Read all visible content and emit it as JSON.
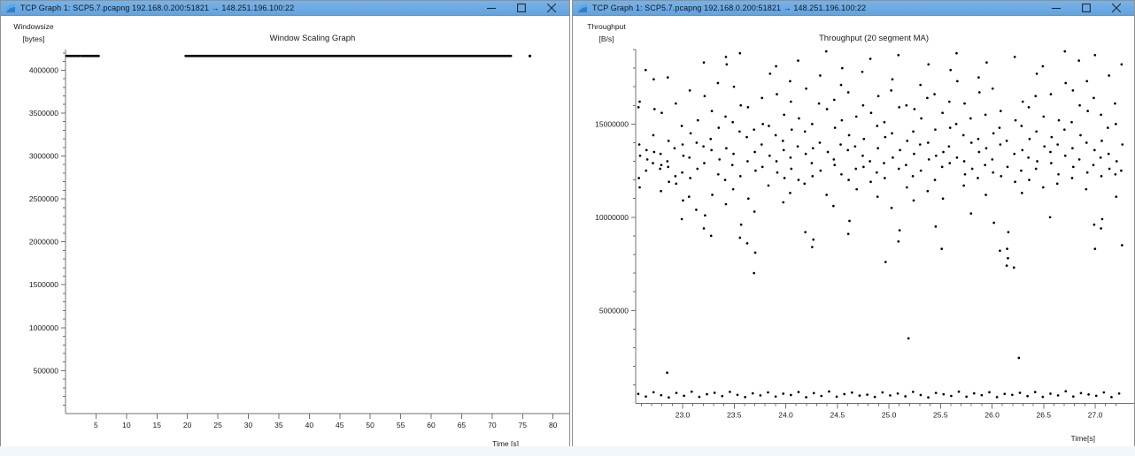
{
  "page": {
    "titlebar_color": "#68a8e0",
    "window_bg": "#ffffff",
    "axis_color": "#707070",
    "text_color": "#1a1a1a",
    "data_color": "#000000"
  },
  "windows": [
    {
      "title": "TCP Graph 1: SCP5.7.pcapng 192.168.0.200:51821 → 148.251.196.100:22",
      "icon": "wireshark-fin-icon",
      "controls": [
        "minimize",
        "maximize",
        "close"
      ]
    },
    {
      "title": "TCP Graph 1: SCP5.7.pcapng 192.168.0.200:51821 → 148.251.196.100:22",
      "icon": "wireshark-fin-icon",
      "controls": [
        "minimize",
        "maximize",
        "close"
      ]
    }
  ],
  "chart_data": [
    {
      "type": "line",
      "title": "Window Scaling Graph",
      "ylabel_lines": [
        "Windowsize",
        "[bytes]"
      ],
      "xlabel": "Time [s]",
      "xlim": [
        0,
        81.5
      ],
      "ylim": [
        0,
        4240000
      ],
      "grid": false,
      "x_ticks": {
        "major_start": 5,
        "major_step": 5,
        "major_end": 80,
        "format": "int"
      },
      "y_ticks": {
        "major_start": 500000,
        "major_step": 500000,
        "major_end": 4000000,
        "minor_start": 100000,
        "minor_step": 100000,
        "minor_end": 4200000,
        "format": "int"
      },
      "series": [
        {
          "name": "window-size",
          "value": 4165000,
          "segments": [
            {
              "t_start": 0.15,
              "t_end": 1.55
            },
            {
              "t_start": 1.8,
              "t_end": 2.3
            },
            {
              "t_start": 2.6,
              "t_end": 5.45
            },
            {
              "t_start": 19.7,
              "t_end": 73.1
            }
          ],
          "isolated_points": [
            [
              76.2,
              4165000
            ]
          ]
        }
      ]
    },
    {
      "type": "scatter",
      "title": "Throughput (20 segment MA)",
      "ylabel_lines": [
        "Throughput",
        "[B/s]"
      ],
      "xlabel": "Time[s]",
      "xlim": [
        22.545,
        27.3
      ],
      "ylim": [
        0,
        19000000
      ],
      "grid": false,
      "x_ticks": {
        "major_start": 23.0,
        "major_step": 0.5,
        "major_end": 27.0,
        "minor_start": 22.6,
        "minor_step": 0.1,
        "minor_end": 27.2,
        "format": "fixed1"
      },
      "y_ticks": {
        "major_start": 5000000,
        "major_step": 5000000,
        "major_end": 15000000,
        "minor_start": 1000000,
        "minor_step": 1000000,
        "minor_end": 19000000,
        "format": "int"
      },
      "clusters_unit": "millions_Bps",
      "clusters": [
        {
          "t": 22.58,
          "ys": [
            16.2,
            15.9,
            13.9,
            13.3,
            12.1,
            11.6
          ]
        },
        {
          "t": 22.65,
          "ys": [
            17.9,
            13.6,
            13.1,
            12.5
          ]
        },
        {
          "t": 22.72,
          "ys": [
            17.4,
            15.8,
            14.4,
            13.5,
            12.9
          ]
        },
        {
          "t": 22.79,
          "ys": [
            15.6,
            13.4,
            12.8,
            12.6,
            11.4
          ]
        },
        {
          "t": 22.86,
          "ys": [
            17.5,
            14.1,
            13.0,
            12.7,
            11.9
          ]
        },
        {
          "t": 22.93,
          "ys": [
            16.1,
            13.7,
            12.2,
            11.8
          ]
        },
        {
          "t": 23.0,
          "ys": [
            14.9,
            13.9,
            13.3,
            12.4,
            10.9,
            9.9
          ]
        },
        {
          "t": 23.07,
          "ys": [
            16.8,
            14.5,
            13.2,
            12.1,
            11.1
          ]
        },
        {
          "t": 23.14,
          "ys": [
            15.2,
            14.0,
            12.6,
            10.4
          ]
        },
        {
          "t": 23.21,
          "ys": [
            18.3,
            16.5,
            13.8,
            12.9,
            10.1,
            9.4
          ]
        },
        {
          "t": 23.28,
          "ys": [
            15.7,
            14.2,
            13.6,
            11.2,
            9.0
          ]
        },
        {
          "t": 23.35,
          "ys": [
            17.2,
            14.8,
            13.1,
            12.3
          ]
        },
        {
          "t": 23.42,
          "ys": [
            18.6,
            18.2,
            15.4,
            13.7,
            12.0,
            10.7
          ]
        },
        {
          "t": 23.49,
          "ys": [
            17.0,
            15.1,
            13.4,
            12.8,
            11.5
          ]
        },
        {
          "t": 23.56,
          "ys": [
            18.8,
            16.0,
            14.6,
            12.2,
            9.6,
            8.9
          ]
        },
        {
          "t": 23.63,
          "ys": [
            15.9,
            14.3,
            13.0,
            11.0,
            8.6
          ]
        },
        {
          "t": 23.7,
          "ys": [
            14.7,
            13.5,
            12.5,
            10.3,
            8.1,
            7.0
          ]
        },
        {
          "t": 23.77,
          "ys": [
            16.4,
            15.0,
            13.9,
            12.7
          ]
        },
        {
          "t": 23.84,
          "ys": [
            17.7,
            14.9,
            13.3,
            11.7
          ]
        },
        {
          "t": 23.91,
          "ys": [
            18.1,
            16.6,
            14.4,
            13.0,
            12.4
          ]
        },
        {
          "t": 23.98,
          "ys": [
            15.5,
            14.1,
            13.6,
            12.1,
            10.8
          ]
        },
        {
          "t": 24.05,
          "ys": [
            17.3,
            16.2,
            14.7,
            13.2,
            12.6,
            11.3
          ]
        },
        {
          "t": 24.12,
          "ys": [
            18.4,
            15.3,
            13.8,
            12.0
          ]
        },
        {
          "t": 24.19,
          "ys": [
            16.9,
            14.6,
            13.4,
            11.8,
            9.2
          ]
        },
        {
          "t": 24.26,
          "ys": [
            15.0,
            13.7,
            12.9,
            12.2,
            8.8,
            8.4
          ]
        },
        {
          "t": 24.33,
          "ys": [
            17.6,
            16.1,
            14.0,
            12.5
          ]
        },
        {
          "t": 24.4,
          "ys": [
            18.9,
            15.8,
            13.5,
            11.2
          ]
        },
        {
          "t": 24.47,
          "ys": [
            16.3,
            14.8,
            13.1,
            12.8,
            10.6
          ]
        },
        {
          "t": 24.54,
          "ys": [
            18.0,
            17.1,
            15.2,
            13.9,
            12.3
          ]
        },
        {
          "t": 24.61,
          "ys": [
            16.7,
            14.4,
            13.6,
            12.0,
            9.8,
            9.1
          ]
        },
        {
          "t": 24.68,
          "ys": [
            15.4,
            13.8,
            12.6,
            11.5
          ]
        },
        {
          "t": 24.75,
          "ys": [
            17.8,
            16.0,
            14.2,
            13.3,
            12.7
          ]
        },
        {
          "t": 24.82,
          "ys": [
            18.5,
            15.6,
            13.0,
            11.9
          ]
        },
        {
          "t": 24.89,
          "ys": [
            16.5,
            14.9,
            13.7,
            12.4,
            11.1
          ]
        },
        {
          "t": 24.96,
          "ys": [
            15.1,
            14.3,
            12.9,
            12.1,
            7.6
          ]
        },
        {
          "t": 25.03,
          "ys": [
            17.4,
            16.8,
            14.5,
            13.2,
            10.5
          ]
        },
        {
          "t": 25.1,
          "ys": [
            18.7,
            15.9,
            13.6,
            12.6,
            9.3,
            8.7
          ]
        },
        {
          "t": 25.17,
          "ys": [
            16.0,
            14.1,
            12.8,
            11.6
          ]
        },
        {
          "t": 25.24,
          "ys": [
            15.8,
            14.6,
            13.4,
            12.2,
            10.9
          ]
        },
        {
          "t": 25.31,
          "ys": [
            17.1,
            15.3,
            13.9,
            12.5
          ]
        },
        {
          "t": 25.38,
          "ys": [
            18.2,
            16.4,
            14.0,
            13.1,
            11.4
          ]
        },
        {
          "t": 25.45,
          "ys": [
            16.6,
            14.7,
            13.3,
            12.0,
            9.5
          ]
        },
        {
          "t": 25.52,
          "ys": [
            15.6,
            13.5,
            12.7,
            11.0,
            8.3
          ]
        },
        {
          "t": 25.59,
          "ys": [
            17.9,
            16.2,
            14.8,
            13.8,
            12.9
          ]
        },
        {
          "t": 25.66,
          "ys": [
            18.8,
            17.3,
            15.0,
            13.2
          ]
        },
        {
          "t": 25.73,
          "ys": [
            16.1,
            14.4,
            13.0,
            12.3,
            11.7
          ]
        },
        {
          "t": 25.8,
          "ys": [
            15.3,
            14.0,
            12.6,
            10.2
          ]
        },
        {
          "t": 25.87,
          "ys": [
            17.5,
            16.7,
            14.2,
            13.5,
            12.1
          ]
        },
        {
          "t": 25.94,
          "ys": [
            18.3,
            15.5,
            13.7,
            12.8,
            11.2
          ]
        },
        {
          "t": 26.01,
          "ys": [
            16.9,
            14.5,
            13.1,
            12.4,
            9.7
          ]
        },
        {
          "t": 26.08,
          "ys": [
            15.7,
            14.8,
            13.9,
            12.2,
            8.2
          ]
        },
        {
          "t": 26.15,
          "ys": [
            14.1,
            12.7,
            9.2,
            8.3,
            7.8,
            7.4
          ]
        },
        {
          "t": 26.22,
          "ys": [
            18.6,
            15.2,
            13.4,
            11.9,
            7.3
          ]
        },
        {
          "t": 26.29,
          "ys": [
            16.2,
            14.9,
            13.6,
            12.5,
            11.3
          ]
        },
        {
          "t": 26.36,
          "ys": [
            15.9,
            14.2,
            13.2,
            12.0
          ]
        },
        {
          "t": 26.43,
          "ys": [
            17.7,
            16.5,
            14.6,
            13.0,
            12.6
          ]
        },
        {
          "t": 26.5,
          "ys": [
            18.1,
            15.4,
            13.8,
            11.6
          ]
        },
        {
          "t": 26.57,
          "ys": [
            16.6,
            14.3,
            13.5,
            12.9,
            10.0
          ]
        },
        {
          "t": 26.64,
          "ys": [
            15.2,
            13.9,
            12.3,
            11.8
          ]
        },
        {
          "t": 26.71,
          "ys": [
            18.9,
            17.2,
            14.7,
            13.3
          ]
        },
        {
          "t": 26.78,
          "ys": [
            16.8,
            15.1,
            13.7,
            12.7,
            12.1
          ]
        },
        {
          "t": 26.85,
          "ys": [
            18.4,
            16.0,
            14.4,
            13.1
          ]
        },
        {
          "t": 26.92,
          "ys": [
            17.3,
            15.7,
            14.0,
            12.4,
            11.5
          ]
        },
        {
          "t": 26.99,
          "ys": [
            18.7,
            16.4,
            13.6,
            12.8,
            9.6,
            8.3
          ]
        },
        {
          "t": 27.06,
          "ys": [
            15.5,
            14.1,
            13.2,
            12.2,
            9.9,
            9.4
          ]
        },
        {
          "t": 27.13,
          "ys": [
            17.6,
            14.8,
            13.4,
            12.6
          ]
        },
        {
          "t": 27.2,
          "ys": [
            16.1,
            15.0,
            13.0,
            12.3,
            11.1
          ]
        },
        {
          "t": 27.26,
          "ys": [
            18.2,
            13.9,
            12.5,
            8.5
          ]
        }
      ],
      "outliers": [
        [
          22.85,
          1.66
        ],
        [
          25.19,
          3.5
        ],
        [
          26.26,
          2.45
        ]
      ],
      "low_band": {
        "t_start": 22.57,
        "t_step": 0.074,
        "ys": [
          0.52,
          0.38,
          0.61,
          0.45,
          0.33,
          0.57,
          0.42,
          0.64,
          0.36,
          0.5,
          0.58,
          0.4,
          0.63,
          0.47,
          0.35,
          0.55,
          0.44,
          0.6,
          0.38,
          0.53,
          0.46,
          0.62,
          0.34,
          0.56,
          0.41,
          0.65,
          0.37,
          0.51,
          0.59,
          0.43,
          0.48,
          0.36,
          0.6,
          0.44,
          0.54,
          0.39,
          0.63,
          0.46,
          0.33,
          0.57,
          0.5,
          0.41,
          0.64,
          0.37,
          0.55,
          0.45,
          0.61,
          0.35,
          0.52,
          0.47,
          0.58,
          0.4,
          0.62,
          0.36,
          0.53,
          0.44,
          0.66,
          0.38,
          0.56,
          0.49,
          0.42,
          0.6,
          0.35,
          0.54
        ]
      }
    }
  ]
}
